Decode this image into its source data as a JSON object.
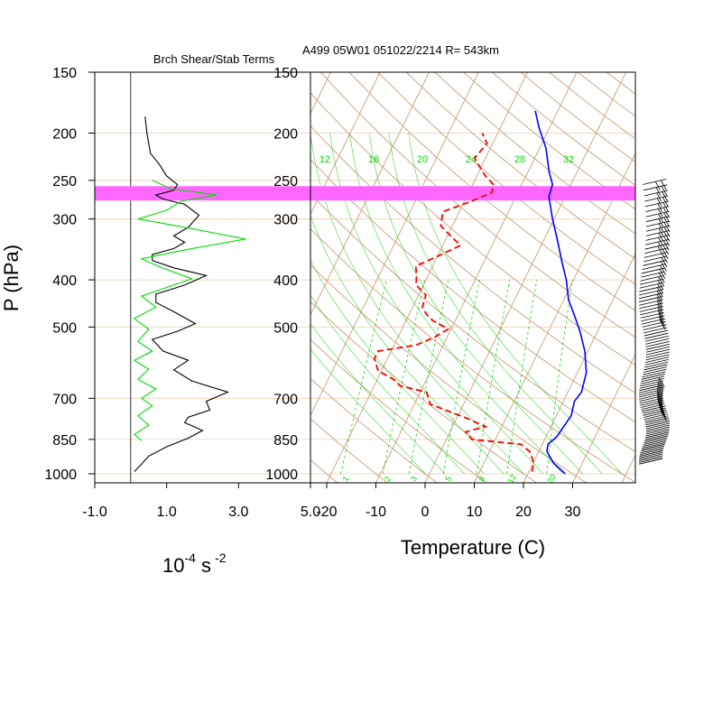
{
  "figure": {
    "title": "A499 05W01 051022/2214 R= 543km",
    "left_panel_title": "Brch Shear/Stab Terms",
    "ylabel": "P (hPa)",
    "left_xlabel_base": "10",
    "left_xlabel_exp1": "-4",
    "left_xlabel_unit": " s",
    "left_xlabel_exp2": "-2",
    "right_xlabel": "Temperature (C)"
  },
  "colors": {
    "temperature": "#0000ff",
    "dewpoint": "#ff0000",
    "shear_term": "#000000",
    "stability_term": "#00dd00",
    "highlight_band": "#ff66ff",
    "isobar": "#f0d8c0",
    "skewt_grid": "#c8a07a",
    "mixing_ratio": "#00cc00",
    "mixing_ratio_labels": "#00dd00"
  },
  "chart_data": [
    {
      "type": "line",
      "name": "left-panel",
      "xlim": [
        -1.0,
        5.0
      ],
      "ylim": [
        1000,
        150
      ],
      "yscale": "log",
      "xticks": [
        "-1.0",
        "1.0",
        "3.0",
        "5.0"
      ],
      "pressure_levels": [
        "150",
        "200",
        "250",
        "300",
        "400",
        "500",
        "700",
        "850",
        "1000"
      ],
      "series": [
        {
          "key": "shear",
          "points": [
            [
              0.4,
              185
            ],
            [
              0.45,
              200
            ],
            [
              0.5,
              210
            ],
            [
              0.55,
              220
            ],
            [
              0.8,
              232
            ],
            [
              1.0,
              245
            ],
            [
              1.3,
              255
            ],
            [
              1.2,
              262
            ],
            [
              0.7,
              268
            ],
            [
              0.9,
              273
            ],
            [
              1.5,
              280
            ],
            [
              1.9,
              295
            ],
            [
              1.6,
              312
            ],
            [
              1.2,
              325
            ],
            [
              1.5,
              335
            ],
            [
              1.2,
              345
            ],
            [
              0.6,
              355
            ],
            [
              0.6,
              365
            ],
            [
              1.2,
              378
            ],
            [
              2.1,
              392
            ],
            [
              1.5,
              410
            ],
            [
              0.7,
              428
            ],
            [
              0.7,
              445
            ],
            [
              1.2,
              465
            ],
            [
              1.8,
              492
            ],
            [
              1.3,
              510
            ],
            [
              0.6,
              530
            ],
            [
              0.9,
              560
            ],
            [
              1.6,
              585
            ],
            [
              1.2,
              612
            ],
            [
              1.7,
              645
            ],
            [
              2.7,
              680
            ],
            [
              2.1,
              710
            ],
            [
              2.2,
              740
            ],
            [
              1.6,
              765
            ],
            [
              1.5,
              785
            ],
            [
              2.0,
              815
            ],
            [
              1.6,
              845
            ],
            [
              1.0,
              880
            ],
            [
              0.5,
              920
            ],
            [
              0.3,
              955
            ],
            [
              0.1,
              990
            ]
          ]
        },
        {
          "key": "stability",
          "points": [
            [
              0.6,
              250
            ],
            [
              1.1,
              260
            ],
            [
              2.4,
              268
            ],
            [
              1.4,
              276
            ],
            [
              1.0,
              288
            ],
            [
              0.2,
              300
            ],
            [
              1.5,
              312
            ],
            [
              3.2,
              330
            ],
            [
              1.7,
              345
            ],
            [
              0.3,
              362
            ],
            [
              0.8,
              376
            ],
            [
              1.7,
              398
            ],
            [
              0.3,
              432
            ],
            [
              0.7,
              455
            ],
            [
              0.1,
              480
            ],
            [
              0.5,
              505
            ],
            [
              0.2,
              535
            ],
            [
              0.6,
              560
            ],
            [
              0.1,
              585
            ],
            [
              0.5,
              610
            ],
            [
              0.2,
              640
            ],
            [
              0.7,
              670
            ],
            [
              0.3,
              700
            ],
            [
              0.6,
              725
            ],
            [
              0.2,
              760
            ],
            [
              0.5,
              795
            ],
            [
              0.1,
              830
            ],
            [
              0.3,
              855
            ]
          ]
        }
      ],
      "highlight_band_hPa": [
        257,
        275
      ]
    },
    {
      "type": "line",
      "name": "skew-t",
      "xlabel": "Temperature (C)",
      "xlim": [
        -23,
        40
      ],
      "ylim": [
        1000,
        150
      ],
      "yscale": "log",
      "xticks": [
        "-20",
        "-10",
        "0",
        "10",
        "20",
        "30"
      ],
      "pressure_levels": [
        "150",
        "200",
        "250",
        "300",
        "400",
        "500",
        "700",
        "850",
        "1000"
      ],
      "mixing_ratio_labels_upper": [
        "12",
        "16",
        "20",
        "24",
        "28",
        "32"
      ],
      "mixing_ratio_labels_lower": [
        "1",
        "2",
        "3",
        "5",
        "8",
        "12",
        "20"
      ],
      "series": [
        {
          "key": "temperature",
          "points": [
            [
              28.5,
              1000
            ],
            [
              25,
              950
            ],
            [
              22.5,
              900
            ],
            [
              22,
              870
            ],
            [
              23,
              840
            ],
            [
              23.8,
              760
            ],
            [
              23,
              710
            ],
            [
              23.5,
              680
            ],
            [
              22.5,
              620
            ],
            [
              20,
              560
            ],
            [
              17,
              510
            ],
            [
              14,
              470
            ],
            [
              11.5,
              440
            ],
            [
              9,
              400
            ],
            [
              6.5,
              370
            ],
            [
              3,
              330
            ],
            [
              0,
              300
            ],
            [
              -3,
              270
            ],
            [
              -3.5,
              255
            ],
            [
              -5.5,
              240
            ],
            [
              -8.5,
              215
            ],
            [
              -12,
              195
            ],
            [
              -14.5,
              180
            ]
          ]
        },
        {
          "key": "dewpoint",
          "points": [
            [
              21.5,
              990
            ],
            [
              21,
              950
            ],
            [
              19,
              900
            ],
            [
              16.5,
              870
            ],
            [
              6,
              850
            ],
            [
              4,
              820
            ],
            [
              7.5,
              800
            ],
            [
              3,
              770
            ],
            [
              -6,
              720
            ],
            [
              -7,
              700
            ],
            [
              -8,
              680
            ],
            [
              -14,
              660
            ],
            [
              -16,
              640
            ],
            [
              -20,
              615
            ],
            [
              -22,
              580
            ],
            [
              -22,
              560
            ],
            [
              -15,
              545
            ],
            [
              -12,
              525
            ],
            [
              -10,
              505
            ],
            [
              -14,
              485
            ],
            [
              -16,
              470
            ],
            [
              -17.5,
              455
            ],
            [
              -18,
              430
            ],
            [
              -21,
              410
            ],
            [
              -22,
              390
            ],
            [
              -23,
              375
            ],
            [
              -20,
              360
            ],
            [
              -16,
              340
            ],
            [
              -19,
              325
            ],
            [
              -22,
              310
            ],
            [
              -23,
              290
            ],
            [
              -18,
              275
            ],
            [
              -15,
              265
            ],
            [
              -15.5,
              255
            ],
            [
              -18,
              245
            ],
            [
              -20,
              235
            ],
            [
              -22,
              225
            ],
            [
              -21,
              210
            ],
            [
              -23,
              200
            ]
          ]
        }
      ]
    }
  ]
}
